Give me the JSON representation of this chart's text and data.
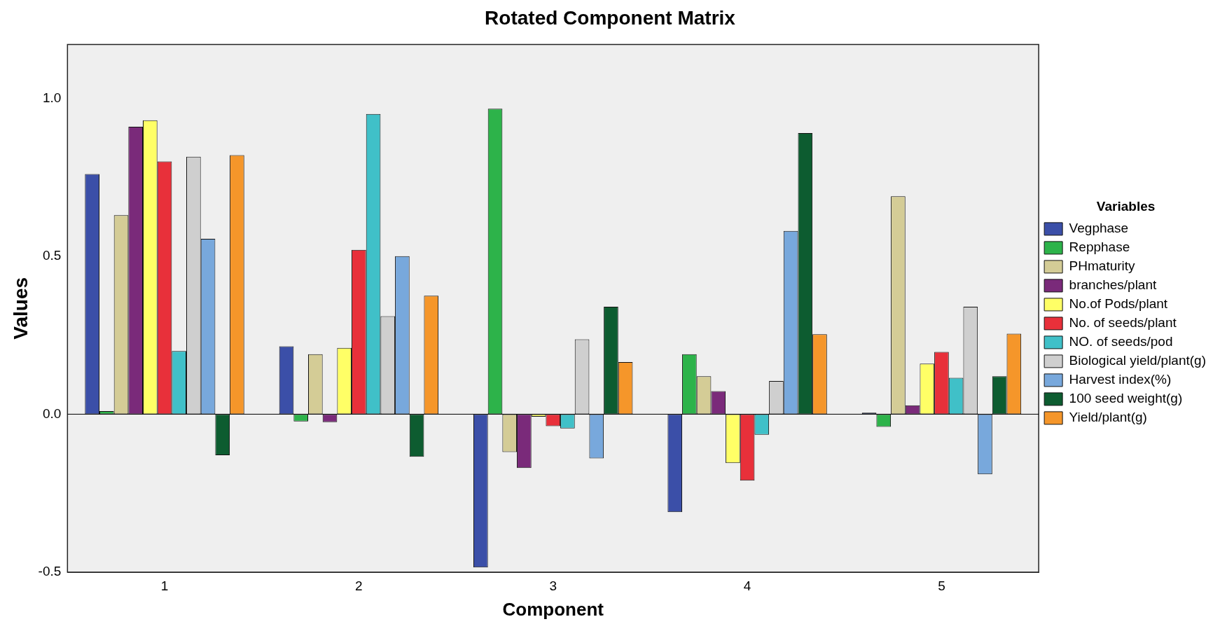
{
  "chart_data": {
    "type": "bar",
    "title": "Rotated Component Matrix",
    "xlabel": "Component",
    "ylabel": "Values",
    "legend_title": "Variables",
    "legend": "right",
    "grid": false,
    "ref_lines": [
      {
        "axis": "y",
        "value": 0,
        "color": "#000000"
      }
    ],
    "categories": [
      "1",
      "2",
      "3",
      "4",
      "5"
    ],
    "ylim": [
      -0.5,
      1.17
    ],
    "yticks": [
      {
        "value": -0.5,
        "label": "-0.5"
      },
      {
        "value": 0,
        "label": "0.0"
      },
      {
        "value": 0.5,
        "label": "0.5"
      },
      {
        "value": 1,
        "label": "1.0"
      }
    ],
    "series": [
      {
        "name": "Vegphase",
        "color": "#3b4fa8",
        "values": [
          0.76,
          0.215,
          -0.485,
          -0.31,
          0.005
        ]
      },
      {
        "name": "Repphase",
        "color": "#2db34a",
        "values": [
          0.01,
          -0.023,
          0.967,
          0.19,
          -0.04
        ]
      },
      {
        "name": "PHmaturity",
        "color": "#d4cc96",
        "values": [
          0.63,
          0.19,
          -0.12,
          0.12,
          0.69
        ]
      },
      {
        "name": "branches/plant",
        "color": "#7a2a7a",
        "values": [
          0.91,
          -0.025,
          -0.17,
          0.073,
          0.028
        ]
      },
      {
        "name": "No.of Pods/plant",
        "color": "#ffff66",
        "values": [
          0.93,
          0.21,
          -0.008,
          -0.155,
          0.16
        ]
      },
      {
        "name": "No. of seeds/plant",
        "color": "#e8303a",
        "values": [
          0.8,
          0.52,
          -0.038,
          -0.21,
          0.197
        ]
      },
      {
        "name": "NO. of seeds/pod",
        "color": "#40c0c8",
        "values": [
          0.2,
          0.95,
          -0.045,
          -0.065,
          0.115
        ]
      },
      {
        "name": "Biological yield/plant(g)",
        "color": "#cfcfcf",
        "values": [
          0.815,
          0.31,
          0.237,
          0.105,
          0.34
        ]
      },
      {
        "name": "Harvest index(%)",
        "color": "#78a8dc",
        "values": [
          0.555,
          0.5,
          -0.14,
          0.58,
          -0.19
        ]
      },
      {
        "name": "100 seed weight(g)",
        "color": "#0d5c30",
        "values": [
          -0.13,
          -0.135,
          0.34,
          0.89,
          0.12
        ]
      },
      {
        "name": "Yield/plant(g)",
        "color": "#f5962a",
        "values": [
          0.82,
          0.375,
          0.165,
          0.253,
          0.255
        ]
      }
    ]
  }
}
